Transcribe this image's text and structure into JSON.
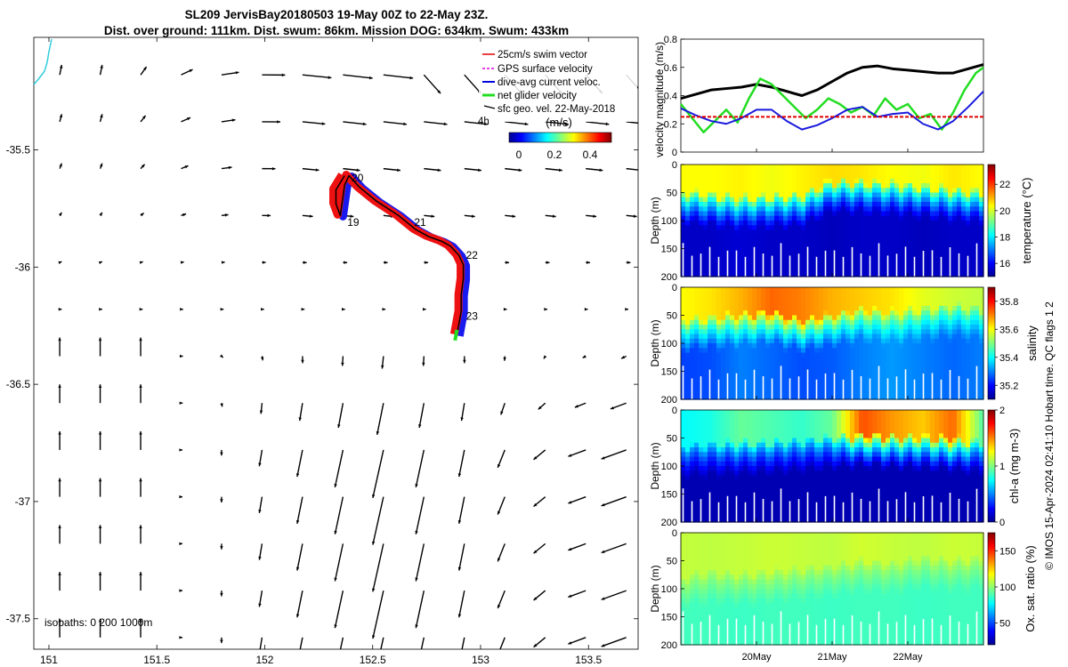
{
  "title": {
    "line1": "SL209 JervisBay20180503 19-May 00Z to 22-May 23Z.",
    "line2": "Dist. over ground: 111km. Dist. swum: 86km. Mission DOG: 634km. Swum: 433km"
  },
  "map": {
    "x_ticks": [
      "151",
      "151.5",
      "152",
      "152.5",
      "153",
      "153.5"
    ],
    "x_tick_values": [
      151,
      151.5,
      152,
      152.5,
      153,
      153.5
    ],
    "y_ticks": [
      "-35.5",
      "-36",
      "-36.5",
      "-37",
      "-37.5"
    ],
    "y_tick_values": [
      -35.5,
      -36,
      -36.5,
      -37,
      -37.5
    ],
    "xlim": [
      150.93,
      153.73
    ],
    "ylim": [
      -37.63,
      -35.02
    ],
    "legend": [
      {
        "label": "25cm/s swim vector",
        "color": "#e00000"
      },
      {
        "label": "GPS surface velocity",
        "color": "#e000e0"
      },
      {
        "label": "dive-avg current veloc.",
        "color": "#0000e0"
      },
      {
        "label": "net glider velocity",
        "color": "#22dd22"
      },
      {
        "label": "sfc geo. vel. 22-May-2018",
        "color": "#000000"
      }
    ],
    "legend_extra": "4h",
    "colorbar": {
      "unit": "(m/s)",
      "ticks": [
        "0",
        "0.2",
        "0.4"
      ]
    },
    "day_labels": [
      {
        "label": "19",
        "lon": 152.37,
        "lat": -35.81
      },
      {
        "label": "20",
        "lon": 152.39,
        "lat": -35.62
      },
      {
        "label": "21",
        "lon": 152.68,
        "lat": -35.81
      },
      {
        "label": "22",
        "lon": 152.92,
        "lat": -35.95
      },
      {
        "label": "23",
        "lon": 152.92,
        "lat": -36.21
      }
    ],
    "isobaths_label": "isobaths: 0   200  1000m",
    "track": [
      [
        152.37,
        -35.61
      ],
      [
        152.33,
        -35.67
      ],
      [
        152.33,
        -35.73
      ],
      [
        152.35,
        -35.78
      ],
      [
        152.37,
        -35.65
      ],
      [
        152.39,
        -35.61
      ],
      [
        152.44,
        -35.66
      ],
      [
        152.52,
        -35.72
      ],
      [
        152.62,
        -35.78
      ],
      [
        152.7,
        -35.84
      ],
      [
        152.76,
        -35.87
      ],
      [
        152.82,
        -35.89
      ],
      [
        152.86,
        -35.91
      ],
      [
        152.9,
        -35.95
      ],
      [
        152.92,
        -35.99
      ],
      [
        152.92,
        -36.05
      ],
      [
        152.91,
        -36.12
      ],
      [
        152.91,
        -36.19
      ],
      [
        152.9,
        -36.24
      ],
      [
        152.89,
        -36.29
      ]
    ]
  },
  "chart_data": [
    {
      "type": "line",
      "ylabel": "velocity magnitude (m/s)",
      "ylim": [
        0,
        0.8
      ],
      "yticks": [
        "0",
        "0.2",
        "0.4",
        "0.6",
        "0.8"
      ],
      "xlim": [
        19.0,
        23.0
      ],
      "series": [
        {
          "color": "#000000",
          "x": [
            19.0,
            19.2,
            19.4,
            19.6,
            19.8,
            20.0,
            20.2,
            20.4,
            20.6,
            20.8,
            21.0,
            21.2,
            21.4,
            21.6,
            21.8,
            22.0,
            22.2,
            22.4,
            22.6,
            22.8,
            23.0
          ],
          "values": [
            0.38,
            0.41,
            0.44,
            0.45,
            0.46,
            0.48,
            0.46,
            0.43,
            0.4,
            0.44,
            0.5,
            0.56,
            0.6,
            0.61,
            0.59,
            0.58,
            0.57,
            0.56,
            0.56,
            0.59,
            0.62
          ]
        },
        {
          "color": "#22dd22",
          "x": [
            19.0,
            19.15,
            19.3,
            19.45,
            19.6,
            19.75,
            19.9,
            20.05,
            20.2,
            20.35,
            20.5,
            20.65,
            20.8,
            20.95,
            21.1,
            21.25,
            21.4,
            21.55,
            21.7,
            21.85,
            22.0,
            22.15,
            22.3,
            22.45,
            22.6,
            22.75,
            22.9,
            23.0
          ],
          "values": [
            0.34,
            0.24,
            0.14,
            0.22,
            0.3,
            0.21,
            0.38,
            0.52,
            0.48,
            0.4,
            0.32,
            0.24,
            0.3,
            0.38,
            0.34,
            0.28,
            0.32,
            0.26,
            0.38,
            0.3,
            0.34,
            0.24,
            0.27,
            0.16,
            0.28,
            0.44,
            0.56,
            0.6
          ]
        },
        {
          "color": "#1a1add",
          "x": [
            19.0,
            19.2,
            19.4,
            19.6,
            19.8,
            20.0,
            20.2,
            20.4,
            20.6,
            20.8,
            21.0,
            21.2,
            21.4,
            21.6,
            21.8,
            22.0,
            22.2,
            22.4,
            22.6,
            22.8,
            23.0
          ],
          "values": [
            0.31,
            0.26,
            0.22,
            0.2,
            0.24,
            0.3,
            0.3,
            0.22,
            0.16,
            0.19,
            0.24,
            0.3,
            0.32,
            0.25,
            0.27,
            0.28,
            0.2,
            0.16,
            0.22,
            0.32,
            0.43
          ]
        },
        {
          "color": "#e00000",
          "x": [
            19.0,
            23.0
          ],
          "values": [
            0.25,
            0.25
          ]
        }
      ]
    },
    {
      "type": "heatmap",
      "ylabel": "Depth (m)",
      "colorbar_label": "temperature (°C)",
      "ylim": [
        0,
        200
      ],
      "yticks": [
        "0",
        "50",
        "100",
        "150",
        "200"
      ],
      "colorbar_ticks": [
        "16",
        "18",
        "20",
        "22"
      ],
      "colorbar_tick_values": [
        16,
        18,
        20,
        22
      ],
      "clim": [
        15,
        23.5
      ],
      "x": [
        19.0,
        19.4,
        19.8,
        20.2,
        20.6,
        21.0,
        21.4,
        21.8,
        22.2,
        22.6,
        23.0
      ],
      "surface_values": [
        20.3,
        20.3,
        20.4,
        20.2,
        20.4,
        20.6,
        20.5,
        20.3,
        20.2,
        20.5,
        20.3
      ],
      "mixed_layer_depth": [
        50,
        55,
        60,
        58,
        55,
        30,
        32,
        35,
        40,
        45,
        50
      ],
      "bottom_values": [
        15.6,
        15.6,
        15.7,
        15.6,
        15.6,
        15.5,
        15.6,
        15.6,
        15.5,
        15.6,
        15.6
      ]
    },
    {
      "type": "heatmap",
      "ylabel": "Depth (m)",
      "colorbar_label": "salinity",
      "ylim": [
        0,
        200
      ],
      "yticks": [
        "0",
        "50",
        "100",
        "150",
        "200"
      ],
      "colorbar_ticks": [
        "35.2",
        "35.4",
        "35.6",
        "35.8"
      ],
      "colorbar_tick_values": [
        35.2,
        35.4,
        35.6,
        35.8
      ],
      "clim": [
        35.1,
        35.9
      ],
      "x": [
        19.0,
        19.4,
        19.8,
        20.2,
        20.6,
        21.0,
        21.4,
        21.8,
        22.2,
        22.6,
        23.0
      ],
      "surface_values": [
        35.6,
        35.62,
        35.66,
        35.72,
        35.7,
        35.66,
        35.64,
        35.62,
        35.58,
        35.56,
        35.55
      ],
      "mixed_layer_depth": [
        60,
        55,
        50,
        45,
        60,
        50,
        40,
        45,
        40,
        35,
        40
      ],
      "bottom_values": [
        35.25,
        35.26,
        35.3,
        35.28,
        35.26,
        35.27,
        35.3,
        35.32,
        35.3,
        35.28,
        35.3
      ]
    },
    {
      "type": "heatmap",
      "ylabel": "Depth (m)",
      "colorbar_label": "chl-a (mg m-3)",
      "ylim": [
        0,
        200
      ],
      "yticks": [
        "0",
        "50",
        "100",
        "150",
        "200"
      ],
      "colorbar_ticks": [
        "0",
        "1",
        "2"
      ],
      "colorbar_tick_values": [
        0,
        1,
        2
      ],
      "clim": [
        0,
        2
      ],
      "x": [
        19.0,
        19.4,
        19.8,
        20.2,
        20.6,
        21.0,
        21.4,
        21.8,
        22.2,
        22.6,
        23.0
      ],
      "surface_values": [
        0.75,
        0.8,
        0.95,
        0.9,
        0.85,
        0.95,
        1.6,
        1.45,
        1.35,
        1.55,
        0.9
      ],
      "mixed_layer_depth": [
        65,
        62,
        60,
        58,
        55,
        50,
        45,
        48,
        50,
        52,
        60
      ],
      "bottom_values": [
        0.1,
        0.1,
        0.1,
        0.1,
        0.1,
        0.1,
        0.1,
        0.1,
        0.1,
        0.1,
        0.1
      ]
    },
    {
      "type": "heatmap",
      "ylabel": "Depth (m)",
      "colorbar_label": "Ox. sat. ratio (%)",
      "ylim": [
        0,
        200
      ],
      "yticks": [
        "0",
        "50",
        "100",
        "150",
        "200"
      ],
      "colorbar_ticks": [
        "50",
        "100",
        "150"
      ],
      "colorbar_tick_values": [
        50,
        100,
        150
      ],
      "clim": [
        20,
        175
      ],
      "x": [
        19.0,
        19.4,
        19.8,
        20.2,
        20.6,
        21.0,
        21.4,
        21.8,
        22.2,
        22.6,
        23.0
      ],
      "surface_values": [
        108,
        107,
        108,
        109,
        108,
        107,
        110,
        108,
        107,
        109,
        108
      ],
      "mixed_layer_depth": [
        80,
        70,
        75,
        70,
        65,
        60,
        50,
        55,
        45,
        50,
        45
      ],
      "bottom_values": [
        88,
        88,
        87,
        88,
        88,
        87,
        88,
        88,
        87,
        88,
        88
      ]
    }
  ],
  "time_axis": {
    "ticks": [
      {
        "label": "20May",
        "value": 20
      },
      {
        "label": "21May",
        "value": 21
      },
      {
        "label": "22May",
        "value": 22
      }
    ]
  },
  "credit": "© IMOS 15-Apr-2024 02:41:10 Hobart time. QC flags 1  2"
}
